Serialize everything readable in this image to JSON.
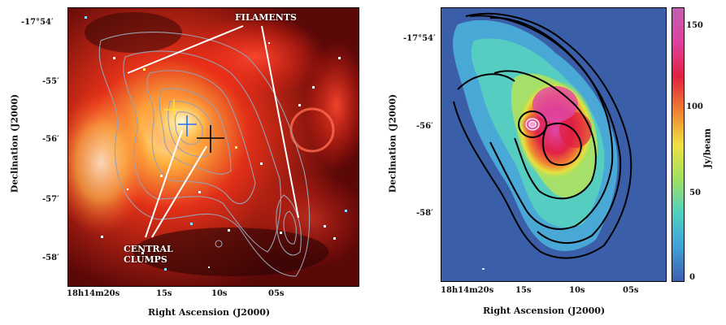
{
  "left_panel": {
    "ylabel": "Declination (J2000)",
    "xlabel": "Right Ascension (J2000)",
    "yticks": [
      "-17°54′",
      "-55′",
      "-56′",
      "-57′",
      "-58′"
    ],
    "xticks": [
      "18h14m20s",
      "15s",
      "10s",
      "05s"
    ],
    "annotations": {
      "filaments": "FILAMENTS",
      "central_clumps_line1": "CENTRAL",
      "central_clumps_line2": "CLUMPS"
    }
  },
  "right_panel": {
    "ylabel": "Declination (J2000)",
    "xlabel": "Right Ascension (J2000)",
    "yticks": [
      "-17°54′",
      "-56′",
      "-58′"
    ],
    "xticks": [
      "18h14m20s",
      "15s",
      "10s",
      "05s"
    ],
    "colorbar": {
      "label": "Jy/beam",
      "ticks": [
        "150",
        "100",
        "50",
        "0"
      ],
      "colors": [
        "#3b5fb0",
        "#3fa0d8",
        "#4fd0c0",
        "#a0e060",
        "#f0e040",
        "#f08030",
        "#e02040",
        "#e040a0",
        "#c060b0"
      ]
    }
  },
  "chart_data": {
    "type": "heatmap",
    "title": "",
    "xlabel": "Right Ascension (J2000)",
    "ylabel": "Declination (J2000)",
    "colorbar_label": "Jy/beam",
    "colorbar_range": [
      0,
      160
    ]
  }
}
